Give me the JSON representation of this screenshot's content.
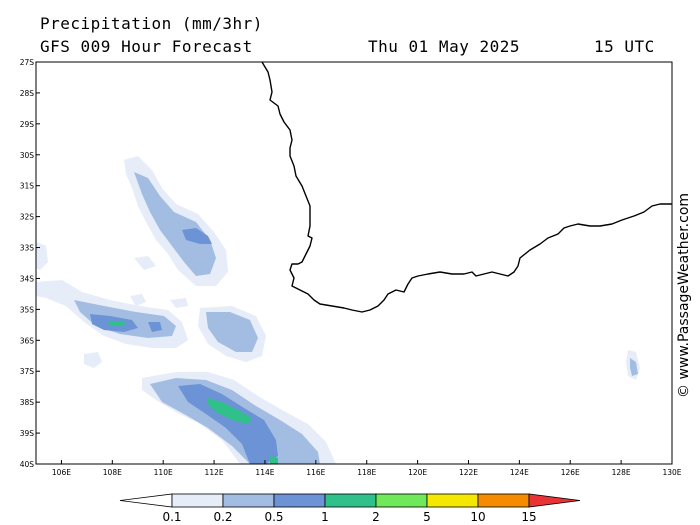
{
  "header": {
    "title": "Precipitation (mm/3hr)",
    "subtitle": "GFS 009 Hour Forecast",
    "date": "Thu 01 May 2025",
    "time": "15 UTC"
  },
  "credit": "© www.PassageWeather.com",
  "map": {
    "lat_labels": [
      "27S",
      "28S",
      "29S",
      "30S",
      "31S",
      "32S",
      "33S",
      "34S",
      "35S",
      "36S",
      "37S",
      "38S",
      "39S",
      "40S"
    ],
    "lon_labels": [
      "106E",
      "108E",
      "110E",
      "112E",
      "114E",
      "116E",
      "118E",
      "120E",
      "122E",
      "124E",
      "126E",
      "128E",
      "130E"
    ],
    "lat_range": [
      -27,
      -40
    ],
    "lon_range": [
      105,
      130
    ]
  },
  "legend": {
    "labels": [
      "0.1",
      "0.2",
      "0.5",
      "1",
      "2",
      "5",
      "10",
      "15"
    ],
    "colors": [
      "#ffffff",
      "#e6ecf8",
      "#a3bde2",
      "#6b93d6",
      "#30c08a",
      "#6fe85a",
      "#f5e800",
      "#f58b00",
      "#e83434"
    ]
  }
}
